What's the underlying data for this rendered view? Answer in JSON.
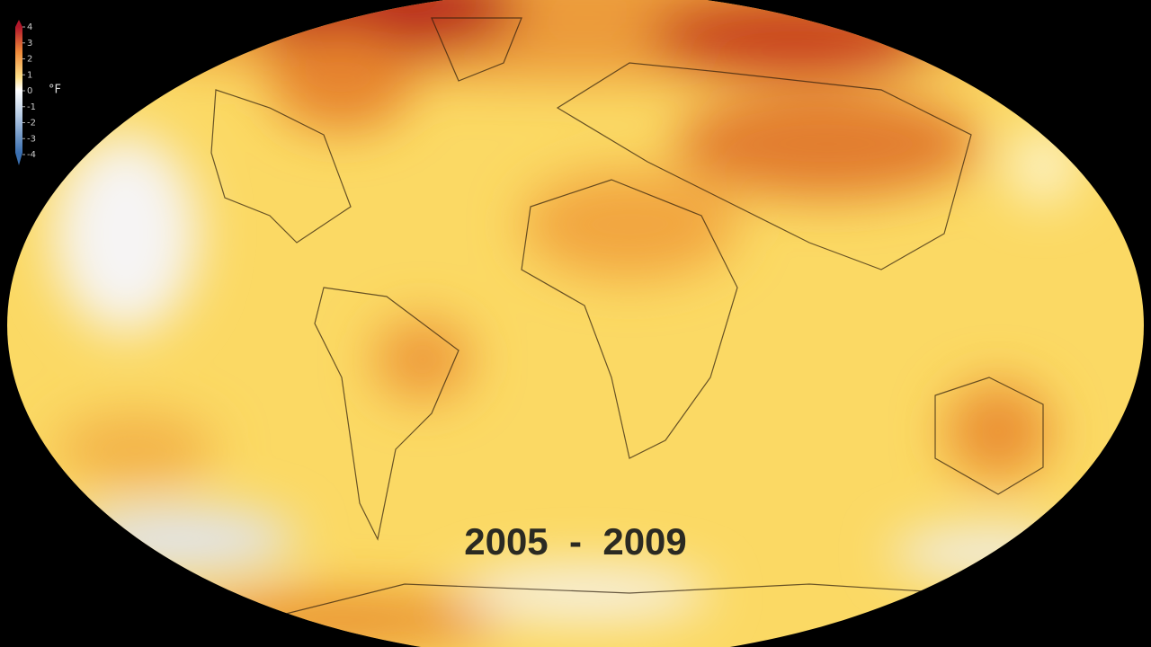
{
  "legend": {
    "ticks": [
      4,
      3,
      2,
      1,
      0,
      -1,
      -2,
      -3,
      -4
    ],
    "unit": "°F"
  },
  "period_label": "2005  -  2009"
}
